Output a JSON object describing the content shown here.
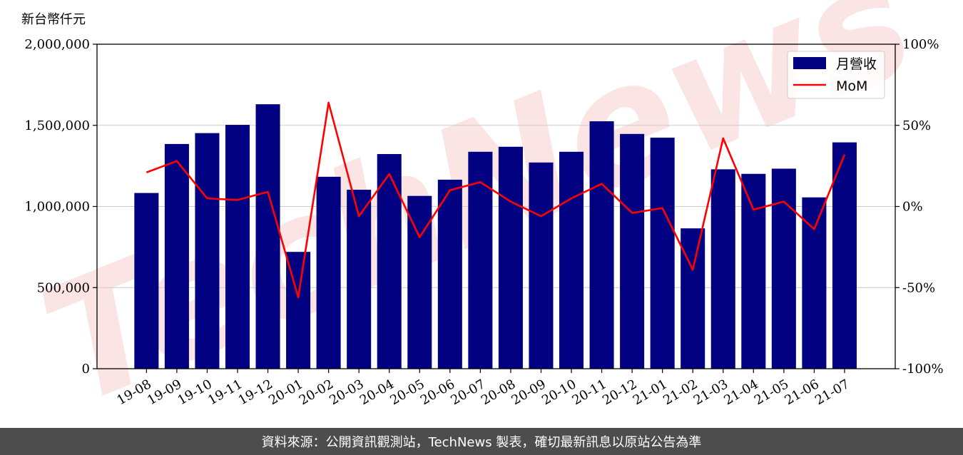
{
  "chart_data": {
    "type": "bar",
    "unit_label": "新台幣仟元",
    "categories": [
      "19-08",
      "19-09",
      "19-10",
      "19-11",
      "19-12",
      "20-01",
      "20-02",
      "20-03",
      "20-04",
      "20-05",
      "20-06",
      "20-07",
      "20-08",
      "20-09",
      "20-10",
      "20-11",
      "20-12",
      "21-01",
      "21-02",
      "21-03",
      "21-04",
      "21-05",
      "21-06",
      "21-07"
    ],
    "series": [
      {
        "name": "月營收",
        "kind": "bar",
        "axis": "left",
        "color": "#000080",
        "values": [
          1083000,
          1385000,
          1452000,
          1503000,
          1630000,
          720000,
          1183000,
          1103000,
          1323000,
          1065000,
          1165000,
          1337000,
          1368000,
          1271000,
          1337000,
          1525000,
          1447000,
          1424000,
          865000,
          1229000,
          1201000,
          1233000,
          1056000,
          1395000
        ]
      },
      {
        "name": "MoM",
        "kind": "line",
        "axis": "right",
        "color": "#ff0000",
        "values": [
          21,
          28,
          5,
          4,
          9,
          -56,
          64,
          -6,
          20,
          -19,
          10,
          15,
          3,
          -6,
          5,
          14,
          -4,
          -1,
          -39,
          42,
          -2,
          3,
          -14,
          32
        ]
      }
    ],
    "left_axis": {
      "min": 0,
      "max": 2000000,
      "ticks": [
        0,
        500000,
        1000000,
        1500000,
        2000000
      ],
      "tick_labels": [
        "0",
        "500,000",
        "1,000,000",
        "1,500,000",
        "2,000,000"
      ]
    },
    "right_axis": {
      "min": -100,
      "max": 100,
      "ticks": [
        -100,
        -50,
        0,
        50,
        100
      ],
      "tick_labels": [
        "-100%",
        "-50%",
        "0%",
        "50%",
        "100%"
      ]
    },
    "grid": "horizontal",
    "legend_position": "top-right"
  },
  "watermark": "TechNews",
  "footer": {
    "text": "資料來源：公開資訊觀測站，TechNews 製表，確切最新訊息以原站公告為準"
  }
}
